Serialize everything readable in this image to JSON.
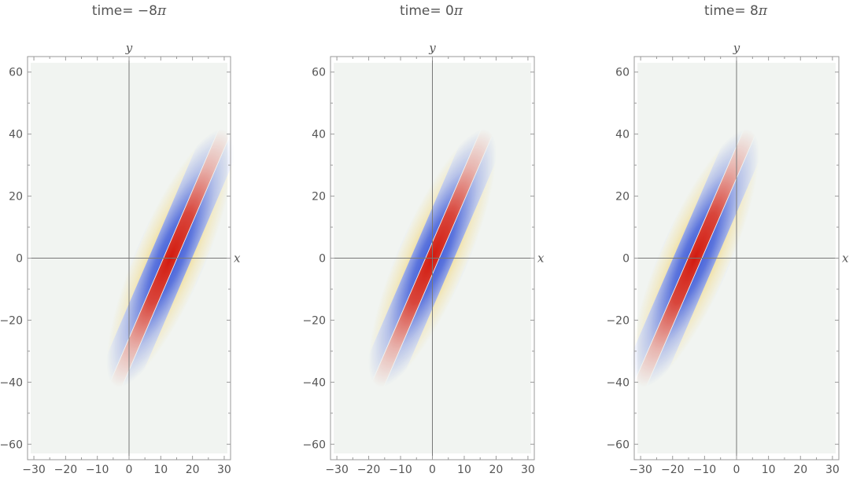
{
  "chart_data": [
    {
      "type": "heatmap",
      "title_prefix": "time= ",
      "title_value": "−8",
      "title_unit": "π",
      "time_over_pi": -8,
      "xlabel": "x",
      "ylabel": "y",
      "xlim": [
        -32,
        32
      ],
      "ylim": [
        -65,
        65
      ],
      "data_extent": {
        "x": [
          -31,
          31
        ],
        "y": [
          -63,
          63
        ]
      },
      "x_ticks": [
        -30,
        -20,
        -10,
        0,
        10,
        20,
        30
      ],
      "y_ticks": [
        -60,
        -40,
        -20,
        0,
        20,
        40,
        60
      ],
      "wave_center_x": 13
    },
    {
      "type": "heatmap",
      "title_prefix": "time= ",
      "title_value": "0",
      "title_unit": "π",
      "time_over_pi": 0,
      "xlabel": "x",
      "ylabel": "y",
      "xlim": [
        -32,
        32
      ],
      "ylim": [
        -65,
        65
      ],
      "data_extent": {
        "x": [
          -31,
          31
        ],
        "y": [
          -63,
          63
        ]
      },
      "x_ticks": [
        -30,
        -20,
        -10,
        0,
        10,
        20,
        30
      ],
      "y_ticks": [
        -60,
        -40,
        -20,
        0,
        20,
        40,
        60
      ],
      "wave_center_x": 0
    },
    {
      "type": "heatmap",
      "title_prefix": "time= ",
      "title_value": "8",
      "title_unit": "π",
      "time_over_pi": 8,
      "xlabel": "x",
      "ylabel": "y",
      "xlim": [
        -32,
        32
      ],
      "ylim": [
        -65,
        65
      ],
      "data_extent": {
        "x": [
          -31,
          31
        ],
        "y": [
          -63,
          63
        ]
      },
      "x_ticks": [
        -30,
        -20,
        -10,
        0,
        10,
        20,
        30
      ],
      "y_ticks": [
        -60,
        -40,
        -20,
        0,
        20,
        40,
        60
      ],
      "wave_center_x": -13
    }
  ],
  "colors": {
    "background": "#ffffff",
    "plot_background": "#f1f4f1",
    "positive_peak": "#d21a0e",
    "positive_mid": "#f2c431",
    "positive_low": "#fbf3c2",
    "negative_peak": "#1d3fd4",
    "negative_low": "#dfe4f7",
    "axis_line": "#777777",
    "frame": "#999999"
  }
}
